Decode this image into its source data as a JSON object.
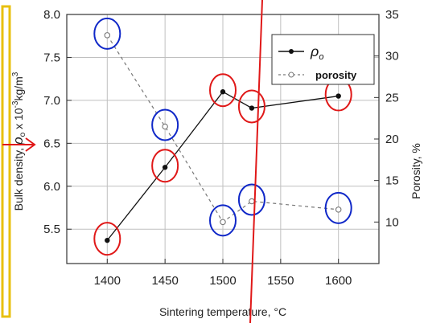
{
  "chart_data": {
    "type": "line",
    "x": [
      1400,
      1450,
      1500,
      1525,
      1600
    ],
    "series": [
      {
        "name": "ρo",
        "axis": "left",
        "style": "solid line, filled circle markers",
        "values": [
          5.37,
          6.22,
          7.1,
          6.91,
          7.05
        ]
      },
      {
        "name": "porosity",
        "axis": "right",
        "style": "dashed line, open circle markers",
        "values": [
          32.5,
          21.5,
          10.0,
          12.5,
          11.5
        ]
      }
    ],
    "xlabel": "Sintering temperature, °C",
    "ylabel": "Bulk density, ρo x 10⁻³kg/m³",
    "y2label": "Porosity, %",
    "xlim": [
      1365,
      1635
    ],
    "ylim": [
      5.1,
      8.0
    ],
    "y2lim": [
      5,
      35
    ],
    "xticks": [
      1400,
      1450,
      1500,
      1550,
      1600
    ],
    "yticks": [
      5.5,
      6.0,
      6.5,
      7.0,
      7.5,
      8.0
    ],
    "y2ticks": [
      10,
      15,
      20,
      25,
      30,
      35
    ],
    "grid": true,
    "legend_position": "top-right",
    "annotations": {
      "red_circles_around": "density points",
      "blue_circles_around": "porosity points",
      "colors": {
        "density_marker": "#111111",
        "porosity_marker": "#777777",
        "red_annotation": "#e01818",
        "blue_annotation": "#1028c8",
        "yellow_box": "#e8c010",
        "grid": "#bfbfbf"
      }
    }
  },
  "labels": {
    "xlabel_prefix": "Sintering temperature, ",
    "xlabel_unit": "°C",
    "ylabel_prefix": "Bulk density, ",
    "ylabel_symbol": "ρ",
    "ylabel_subscript": "o",
    "ylabel_factor": " x 10",
    "ylabel_exponent": "-3",
    "ylabel_unit": "kg/m",
    "ylabel_unit_exp": "3",
    "y2label": "Porosity, %",
    "legend_rho_symbol": "ρ",
    "legend_rho_subscript": "o",
    "legend_porosity": "porosity"
  }
}
